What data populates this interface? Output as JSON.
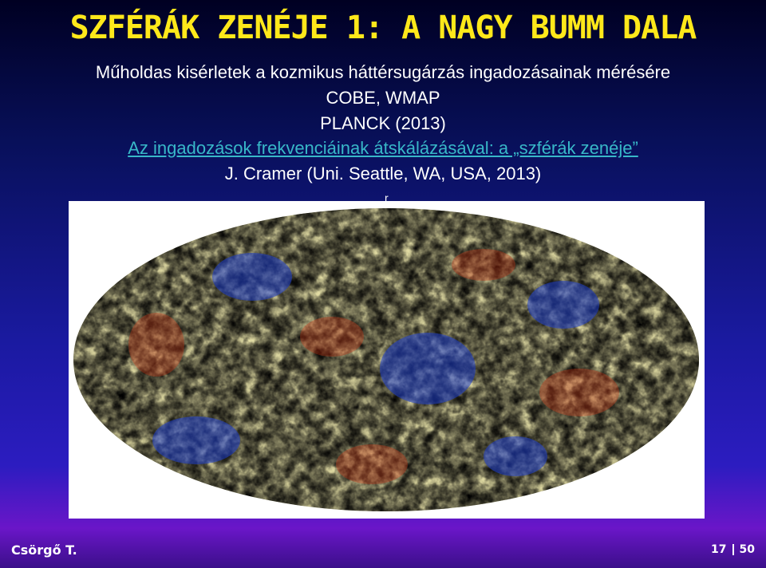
{
  "slide": {
    "title": "SZFÉRÁK ZENÉJE 1: A NAGY BUMM DALA",
    "lines": [
      "Műholdas kisérletek a kozmikus háttérsugárzás ingadozásainak mérésére",
      "COBE, WMAP",
      "PLANCK (2013)"
    ],
    "link_text": "Az ingadozások frekvenciáinak átskálázásával: a „szférák zenéje”",
    "credit": "J. Cramer (Uni. Seattle, WA, USA, 2013)",
    "stray_char": "r",
    "author": "Csörgő T.",
    "page_current": "17",
    "page_total": "50"
  },
  "image": {
    "subject": "cmb-sky-map",
    "colors": {
      "cold": "#1f3fd0",
      "cool": "#5aa8e8",
      "neutral": "#e8e2a8",
      "warm": "#f2a040",
      "hot": "#d83a18"
    }
  },
  "colors": {
    "title": "#ffe81a",
    "link": "#38b8c8",
    "text": "#ffffff"
  }
}
